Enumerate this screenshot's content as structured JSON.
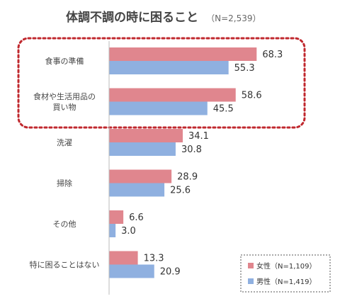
{
  "chart_data": {
    "type": "bar",
    "orientation": "horizontal",
    "title": "体調不調の時に困ること",
    "subtitle": "（N=2,539）",
    "categories": [
      "食事の準備",
      "食材や生活用品の\n買い物",
      "洗濯",
      "掃除",
      "その他",
      "特に困ることはない"
    ],
    "series": [
      {
        "name": "女性（N=1,109）",
        "values": [
          68.3,
          58.6,
          34.1,
          28.9,
          6.6,
          13.3
        ],
        "color": "#e0868e"
      },
      {
        "name": "男性（N=1,419）",
        "values": [
          55.3,
          45.5,
          30.8,
          25.6,
          3.0,
          20.9
        ],
        "color": "#8fb0e0"
      }
    ],
    "xlim": [
      0,
      100
    ],
    "grid": false,
    "legend_position": "bottom-right",
    "highlight": {
      "categories": [
        "食事の準備",
        "食材や生活用品の\n買い物"
      ],
      "style": "dotted",
      "color": "#c0282e"
    }
  }
}
